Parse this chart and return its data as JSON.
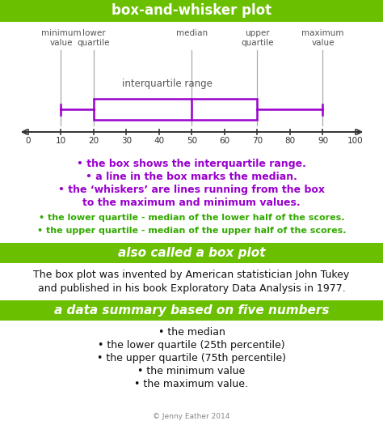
{
  "title": "box-and-whisker plot",
  "title_bg": "#6abf00",
  "title_color": "white",
  "section2_title": "also called a box plot",
  "section3_title": "a data summary based on five numbers",
  "bg_color": "white",
  "box_color": "#9900cc",
  "axis_color": "#333333",
  "purple_text_color": "#9900cc",
  "green_text_color": "#33aa00",
  "black_text_color": "#111111",
  "min_val": 10,
  "q1": 20,
  "median": 50,
  "q3": 70,
  "max_val": 90,
  "axis_ticks": [
    0,
    10,
    20,
    30,
    40,
    50,
    60,
    70,
    80,
    90,
    100
  ],
  "purple_bullets": [
    "• the box shows the interquartile range.",
    "• a line in the box marks the median.",
    "• the ‘whiskers’ are lines running from the box",
    "to the maximum and minimum values."
  ],
  "green_bullets": [
    "• the lower quartile - median of the lower half of the scores.",
    "• the upper quartile - median of the upper half of the scores."
  ],
  "section2_text1": "The box plot was invented by American statistician John Tukey",
  "section2_text2": "and published in his book Exploratory Data Analysis in 1977.",
  "section3_bullets": [
    "• the median",
    "• the lower quartile (25th percentile)",
    "• the upper quartile (75th percentile)",
    "• the minimum value",
    "• the maximum value."
  ],
  "footer": "© Jenny Eather 2014",
  "label_min": "minimum\nvalue",
  "label_q1": "lower\nquartile",
  "label_median": "median",
  "label_q3": "upper\nquartile",
  "label_max": "maximum\nvalue",
  "label_iqr": "interquartile range"
}
